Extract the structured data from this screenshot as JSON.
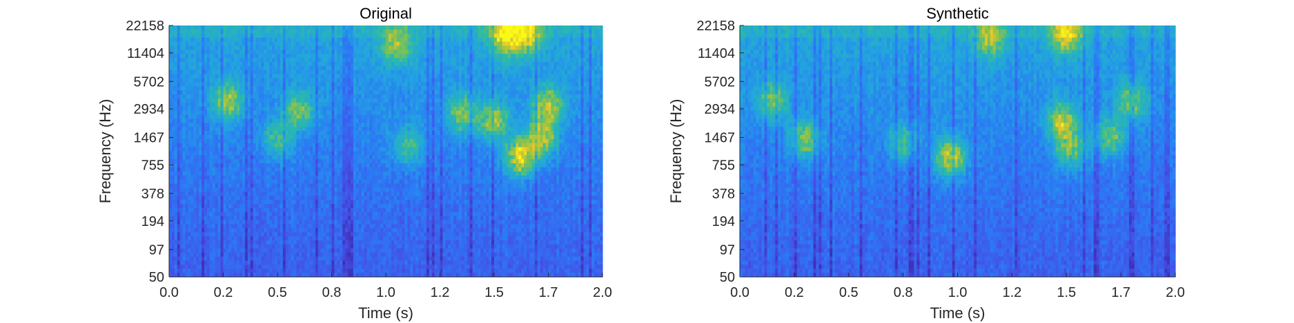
{
  "chart_data": [
    {
      "type": "heatmap",
      "title": "Original",
      "xlabel": "Time (s)",
      "ylabel": "Frequency (Hz)",
      "xlim": [
        0,
        2.0
      ],
      "x_ticks": [
        "0.0",
        "0.2",
        "0.5",
        "0.8",
        "1.0",
        "1.2",
        "1.5",
        "1.7",
        "2.0"
      ],
      "x_tick_values": [
        0,
        0.25,
        0.5,
        0.75,
        1.0,
        1.25,
        1.5,
        1.75,
        2.0
      ],
      "y_scale": "log",
      "ylim": [
        50,
        22158
      ],
      "y_ticks": [
        "50",
        "97",
        "194",
        "378",
        "755",
        "1467",
        "2934",
        "5702",
        "11404",
        "22158"
      ],
      "y_tick_values": [
        50,
        97,
        194,
        378,
        755,
        1467,
        2934,
        5702,
        11404,
        22158
      ],
      "colormap": [
        "#3e26a8",
        "#4352e8",
        "#2b7bf5",
        "#22a4e0",
        "#2cbaa8",
        "#8ac24a",
        "#e6c72b",
        "#f9fb15"
      ],
      "hotspots": [
        {
          "t": 1.62,
          "f": 900,
          "level": 0.95
        },
        {
          "t": 1.72,
          "f": 1450,
          "level": 0.8
        },
        {
          "t": 1.5,
          "f": 2200,
          "level": 0.7
        },
        {
          "t": 1.75,
          "f": 3200,
          "level": 0.7
        },
        {
          "t": 1.35,
          "f": 2600,
          "level": 0.6
        },
        {
          "t": 1.65,
          "f": 18000,
          "level": 0.75
        },
        {
          "t": 1.55,
          "f": 17000,
          "level": 0.8
        },
        {
          "t": 0.27,
          "f": 3500,
          "level": 0.65
        },
        {
          "t": 0.6,
          "f": 2800,
          "level": 0.55
        },
        {
          "t": 0.5,
          "f": 1400,
          "level": 0.5
        },
        {
          "t": 1.1,
          "f": 1200,
          "level": 0.5
        },
        {
          "t": 1.05,
          "f": 14000,
          "level": 0.55
        }
      ]
    },
    {
      "type": "heatmap",
      "title": "Synthetic",
      "xlabel": "Time (s)",
      "ylabel": "Frequency (Hz)",
      "xlim": [
        0,
        2.0
      ],
      "x_ticks": [
        "0.0",
        "0.2",
        "0.5",
        "0.8",
        "1.0",
        "1.2",
        "1.5",
        "1.7",
        "2.0"
      ],
      "x_tick_values": [
        0,
        0.25,
        0.5,
        0.75,
        1.0,
        1.25,
        1.5,
        1.75,
        2.0
      ],
      "y_scale": "log",
      "ylim": [
        50,
        22158
      ],
      "y_ticks": [
        "50",
        "97",
        "194",
        "378",
        "755",
        "1467",
        "2934",
        "5702",
        "11404",
        "22158"
      ],
      "y_tick_values": [
        50,
        97,
        194,
        378,
        755,
        1467,
        2934,
        5702,
        11404,
        22158
      ],
      "colormap": [
        "#3e26a8",
        "#4352e8",
        "#2b7bf5",
        "#22a4e0",
        "#2cbaa8",
        "#8ac24a",
        "#e6c72b",
        "#f9fb15"
      ],
      "hotspots": [
        {
          "t": 0.97,
          "f": 900,
          "level": 0.85
        },
        {
          "t": 1.48,
          "f": 2200,
          "level": 0.75
        },
        {
          "t": 1.52,
          "f": 1100,
          "level": 0.6
        },
        {
          "t": 1.7,
          "f": 1500,
          "level": 0.6
        },
        {
          "t": 0.3,
          "f": 1400,
          "level": 0.6
        },
        {
          "t": 0.75,
          "f": 1300,
          "level": 0.5
        },
        {
          "t": 1.5,
          "f": 18000,
          "level": 0.75
        },
        {
          "t": 1.15,
          "f": 16000,
          "level": 0.55
        },
        {
          "t": 0.15,
          "f": 3500,
          "level": 0.55
        },
        {
          "t": 1.8,
          "f": 3500,
          "level": 0.55
        }
      ]
    }
  ]
}
